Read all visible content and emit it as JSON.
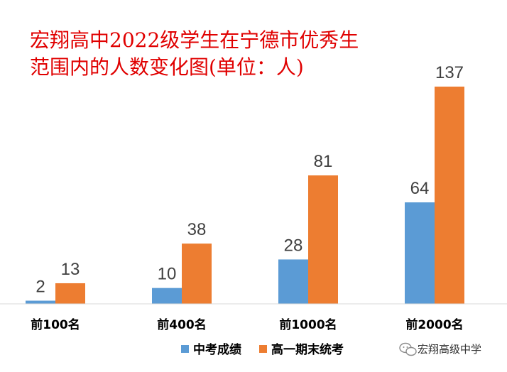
{
  "chart_data": {
    "type": "bar",
    "title_line1": "宏翔高中2022级学生在宁德市优秀生",
    "title_line2": "范围内的人数变化图(单位：人)",
    "categories": [
      "前100名",
      "前400名",
      "前1000名",
      "前2000名"
    ],
    "series": [
      {
        "name": "中考成绩",
        "values": [
          2,
          10,
          28,
          64
        ],
        "color": "#5b9bd5"
      },
      {
        "name": "高一期末统考",
        "values": [
          13,
          38,
          81,
          137
        ],
        "color": "#ed7d31"
      }
    ],
    "ylim": [
      0,
      150
    ],
    "grid": false,
    "legend_position": "bottom",
    "title_color": "#e00000"
  },
  "watermark": {
    "text": "宏翔高级中学",
    "icon": "wechat-icon"
  }
}
